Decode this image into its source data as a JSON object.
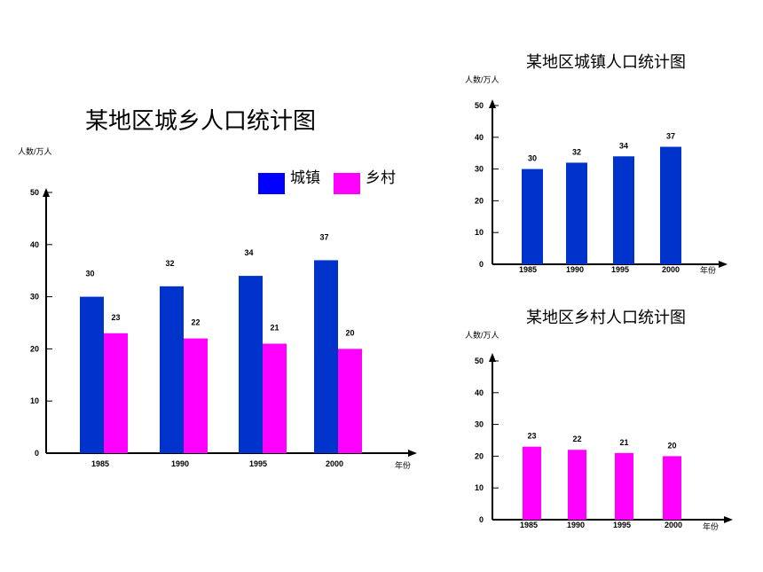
{
  "colors": {
    "urban": "#0033cc",
    "rural": "#ff00ff",
    "legend_urban": "#0000ff",
    "axis": "#000000"
  },
  "chart_data": [
    {
      "id": "main",
      "type": "bar",
      "title": "某地区城乡人口统计图",
      "ylabel": "人数/万人",
      "xlabel": "年份",
      "categories": [
        "1985",
        "1990",
        "1995",
        "2000"
      ],
      "yticks": [
        0,
        10,
        20,
        30,
        40,
        50
      ],
      "ylim": [
        0,
        50
      ],
      "legend": "top-right",
      "series": [
        {
          "name": "城镇",
          "color": "#0033cc",
          "values": [
            30,
            32,
            34,
            37
          ]
        },
        {
          "name": "乡村",
          "color": "#ff00ff",
          "values": [
            23,
            22,
            21,
            20
          ]
        }
      ]
    },
    {
      "id": "urban",
      "type": "bar",
      "title": "某地区城镇人口统计图",
      "ylabel": "人数/万人",
      "xlabel": "年份",
      "categories": [
        "1985",
        "1990",
        "1995",
        "2000"
      ],
      "yticks": [
        0,
        10,
        20,
        30,
        40,
        50
      ],
      "ylim": [
        0,
        50
      ],
      "series": [
        {
          "color": "#0033cc",
          "values": [
            30,
            32,
            34,
            37
          ]
        }
      ]
    },
    {
      "id": "rural",
      "type": "bar",
      "title": "某地区乡村人口统计图",
      "ylabel": "人数/万人",
      "xlabel": "年份",
      "categories": [
        "1985",
        "1990",
        "1995",
        "2000"
      ],
      "yticks": [
        0,
        10,
        20,
        30,
        40,
        50
      ],
      "ylim": [
        0,
        50
      ],
      "series": [
        {
          "color": "#ff00ff",
          "values": [
            23,
            22,
            21,
            20
          ]
        }
      ]
    }
  ]
}
